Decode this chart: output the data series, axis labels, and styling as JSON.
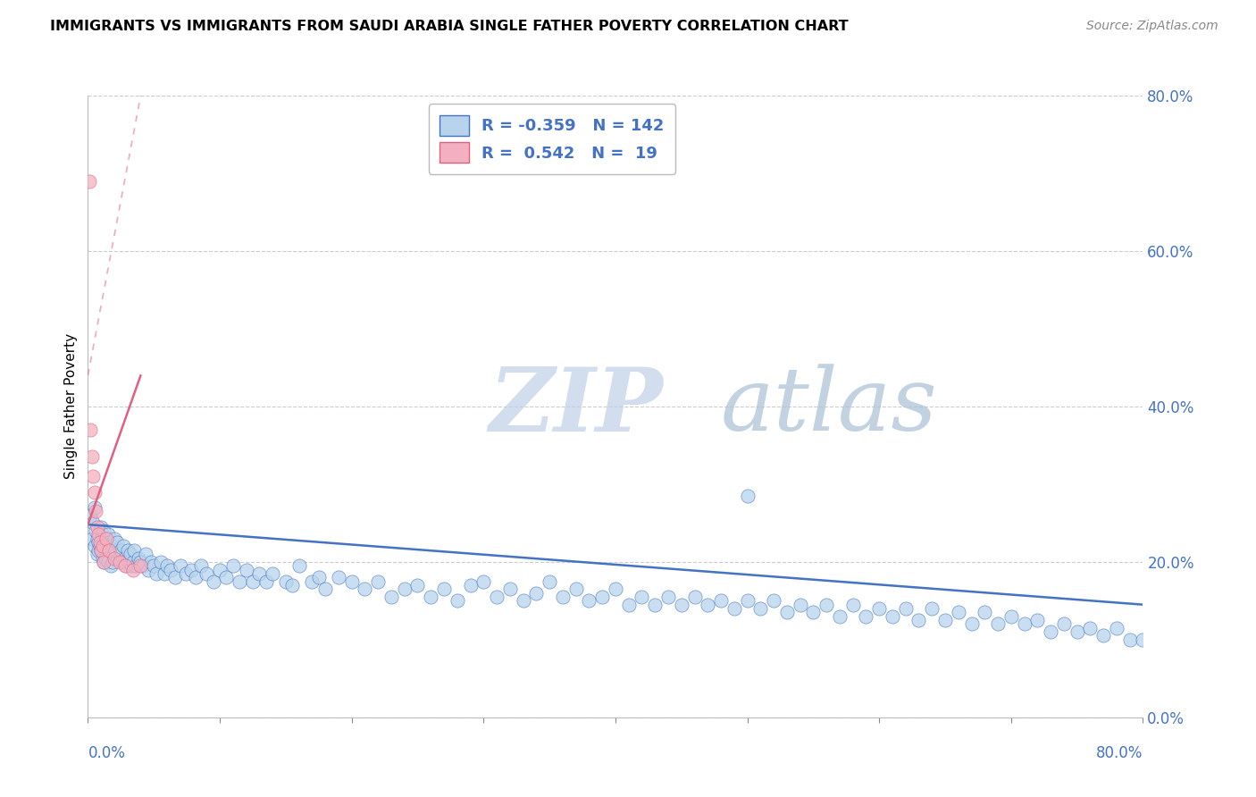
{
  "title": "IMMIGRANTS VS IMMIGRANTS FROM SAUDI ARABIA SINGLE FATHER POVERTY CORRELATION CHART",
  "source": "Source: ZipAtlas.com",
  "ylabel": "Single Father Poverty",
  "legend_blue_R": "-0.359",
  "legend_blue_N": "142",
  "legend_pink_R": "0.542",
  "legend_pink_N": "19",
  "blue_color": "#b8d4ec",
  "pink_color": "#f4b0c0",
  "blue_line_color": "#4472c4",
  "pink_line_color": "#e06080",
  "watermark_zip": "ZIP",
  "watermark_atlas": "atlas",
  "watermark_color_zip": "#c0cfe8",
  "watermark_color_atlas": "#a8c8d8",
  "xlim": [
    0.0,
    0.8
  ],
  "ylim": [
    0.0,
    0.8
  ],
  "yticks": [
    0.0,
    0.2,
    0.4,
    0.6,
    0.8
  ],
  "blue_scatter_x": [
    0.002,
    0.003,
    0.004,
    0.005,
    0.005,
    0.006,
    0.007,
    0.007,
    0.008,
    0.008,
    0.009,
    0.01,
    0.01,
    0.011,
    0.011,
    0.012,
    0.012,
    0.013,
    0.013,
    0.014,
    0.015,
    0.015,
    0.016,
    0.017,
    0.017,
    0.018,
    0.019,
    0.02,
    0.021,
    0.022,
    0.023,
    0.024,
    0.025,
    0.026,
    0.027,
    0.028,
    0.029,
    0.03,
    0.031,
    0.032,
    0.033,
    0.034,
    0.035,
    0.036,
    0.038,
    0.04,
    0.042,
    0.044,
    0.046,
    0.048,
    0.05,
    0.052,
    0.055,
    0.058,
    0.06,
    0.063,
    0.066,
    0.07,
    0.074,
    0.078,
    0.082,
    0.086,
    0.09,
    0.095,
    0.1,
    0.105,
    0.11,
    0.115,
    0.12,
    0.125,
    0.13,
    0.135,
    0.14,
    0.15,
    0.155,
    0.16,
    0.17,
    0.175,
    0.18,
    0.19,
    0.2,
    0.21,
    0.22,
    0.23,
    0.24,
    0.25,
    0.26,
    0.27,
    0.28,
    0.29,
    0.3,
    0.31,
    0.32,
    0.33,
    0.34,
    0.35,
    0.36,
    0.37,
    0.38,
    0.39,
    0.4,
    0.41,
    0.42,
    0.43,
    0.44,
    0.45,
    0.46,
    0.47,
    0.48,
    0.49,
    0.5,
    0.51,
    0.52,
    0.53,
    0.54,
    0.55,
    0.56,
    0.57,
    0.58,
    0.59,
    0.6,
    0.61,
    0.62,
    0.63,
    0.64,
    0.65,
    0.66,
    0.67,
    0.68,
    0.69,
    0.7,
    0.71,
    0.72,
    0.73,
    0.74,
    0.75,
    0.76,
    0.77,
    0.78,
    0.79,
    0.8,
    0.5
  ],
  "blue_scatter_y": [
    0.26,
    0.23,
    0.25,
    0.27,
    0.22,
    0.24,
    0.21,
    0.23,
    0.225,
    0.215,
    0.22,
    0.245,
    0.215,
    0.235,
    0.205,
    0.24,
    0.2,
    0.23,
    0.205,
    0.22,
    0.235,
    0.2,
    0.225,
    0.215,
    0.195,
    0.22,
    0.2,
    0.23,
    0.215,
    0.225,
    0.205,
    0.21,
    0.215,
    0.2,
    0.22,
    0.205,
    0.195,
    0.215,
    0.2,
    0.21,
    0.195,
    0.2,
    0.215,
    0.195,
    0.205,
    0.2,
    0.195,
    0.21,
    0.19,
    0.2,
    0.195,
    0.185,
    0.2,
    0.185,
    0.195,
    0.19,
    0.18,
    0.195,
    0.185,
    0.19,
    0.18,
    0.195,
    0.185,
    0.175,
    0.19,
    0.18,
    0.195,
    0.175,
    0.19,
    0.175,
    0.185,
    0.175,
    0.185,
    0.175,
    0.17,
    0.195,
    0.175,
    0.18,
    0.165,
    0.18,
    0.175,
    0.165,
    0.175,
    0.155,
    0.165,
    0.17,
    0.155,
    0.165,
    0.15,
    0.17,
    0.175,
    0.155,
    0.165,
    0.15,
    0.16,
    0.175,
    0.155,
    0.165,
    0.15,
    0.155,
    0.165,
    0.145,
    0.155,
    0.145,
    0.155,
    0.145,
    0.155,
    0.145,
    0.15,
    0.14,
    0.15,
    0.14,
    0.15,
    0.135,
    0.145,
    0.135,
    0.145,
    0.13,
    0.145,
    0.13,
    0.14,
    0.13,
    0.14,
    0.125,
    0.14,
    0.125,
    0.135,
    0.12,
    0.135,
    0.12,
    0.13,
    0.12,
    0.125,
    0.11,
    0.12,
    0.11,
    0.115,
    0.105,
    0.115,
    0.1,
    0.1,
    0.285
  ],
  "pink_scatter_x": [
    0.001,
    0.002,
    0.003,
    0.004,
    0.005,
    0.006,
    0.007,
    0.008,
    0.009,
    0.01,
    0.011,
    0.012,
    0.014,
    0.016,
    0.02,
    0.024,
    0.028,
    0.034,
    0.04
  ],
  "pink_scatter_y": [
    0.69,
    0.37,
    0.335,
    0.31,
    0.29,
    0.265,
    0.245,
    0.235,
    0.225,
    0.215,
    0.22,
    0.2,
    0.23,
    0.215,
    0.205,
    0.2,
    0.195,
    0.19,
    0.195
  ],
  "blue_trend_x0": 0.0,
  "blue_trend_x1": 0.8,
  "blue_trend_y0": 0.248,
  "blue_trend_y1": 0.145,
  "pink_trend_solid_x0": 0.0,
  "pink_trend_solid_x1": 0.04,
  "pink_trend_solid_y0": 0.248,
  "pink_trend_solid_y1": 0.44,
  "pink_trend_dashed_x0": 0.0,
  "pink_trend_dashed_x1": 0.04,
  "pink_trend_dashed_y0": 0.44,
  "pink_trend_dashed_y1": 0.8
}
